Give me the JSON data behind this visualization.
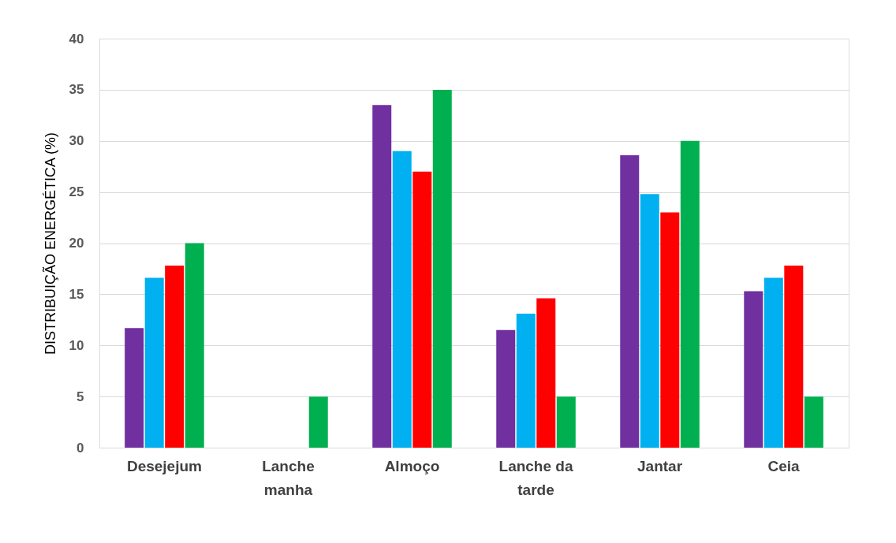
{
  "chart_data": {
    "type": "bar",
    "ylabel": "DISTRIBUIÇÃO ENERGÉTICA (%)",
    "categories": [
      "Desejejum",
      "Lanche manha",
      "Almoço",
      "Lanche da tarde",
      "Jantar",
      "Ceia"
    ],
    "series": [
      {
        "color": "#7030a0",
        "values": [
          11.7,
          0,
          33.5,
          11.5,
          28.6,
          15.3
        ]
      },
      {
        "color": "#00b0f0",
        "values": [
          16.6,
          0,
          29.0,
          13.1,
          24.8,
          16.6
        ]
      },
      {
        "color": "#ff0000",
        "values": [
          17.8,
          0,
          27.0,
          14.6,
          23.0,
          17.8
        ]
      },
      {
        "color": "#00b050",
        "values": [
          20.0,
          5.0,
          35.0,
          5.0,
          30.0,
          5.0
        ]
      }
    ],
    "ylim": [
      0,
      40
    ],
    "yticks": [
      0,
      5,
      10,
      15,
      20,
      25,
      30,
      35,
      40
    ],
    "grid": "y"
  }
}
